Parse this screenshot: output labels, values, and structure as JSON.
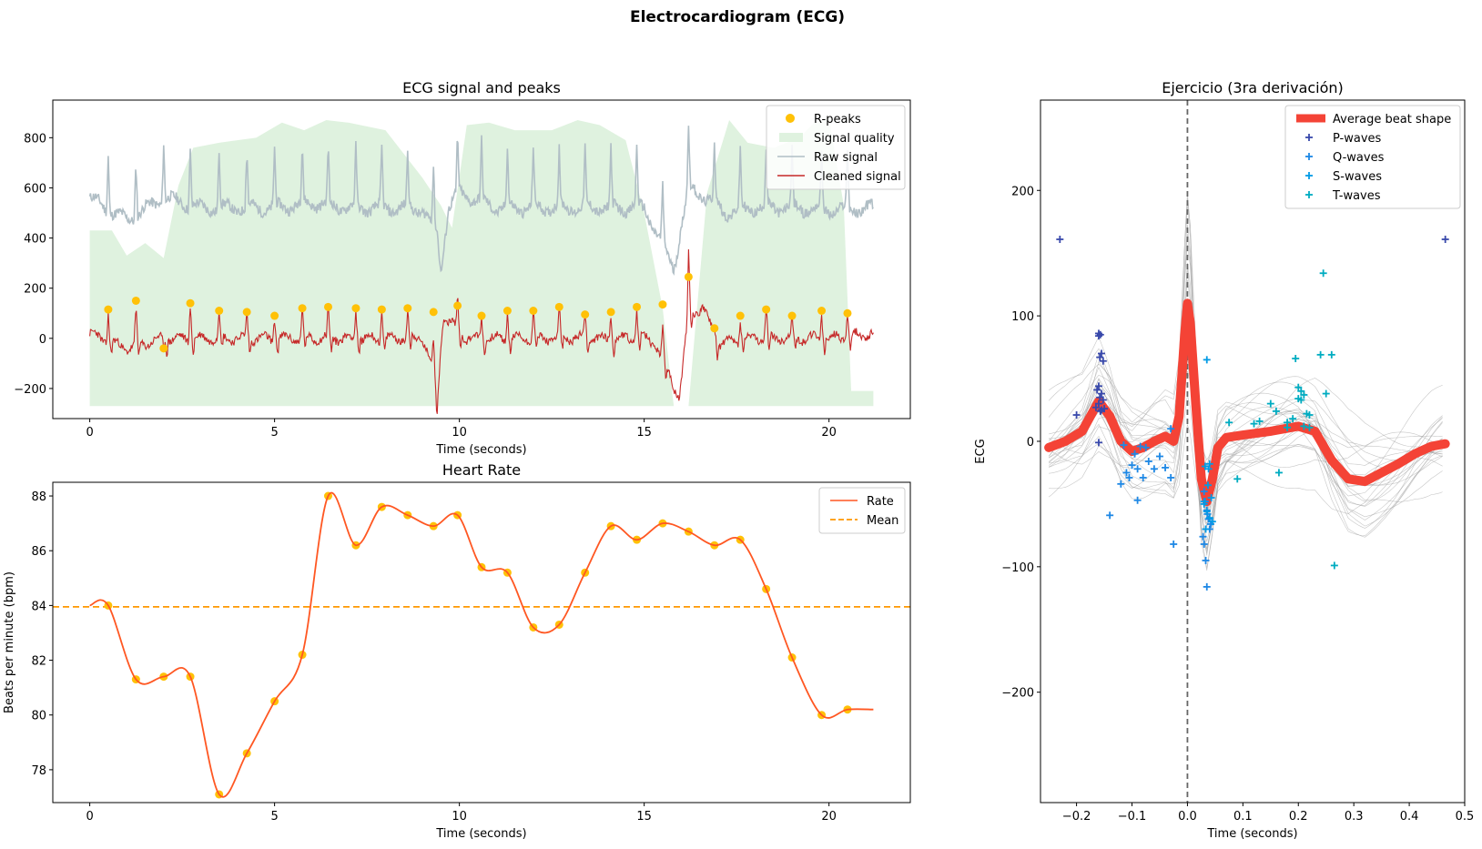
{
  "figure": {
    "suptitle": "Electrocardiogram (ECG)"
  },
  "colors": {
    "rpeak": "#FFC107",
    "quality": "#DFF2DF",
    "raw": "#B0BEC5",
    "cleaned": "#C62828",
    "rate": "#FF5722",
    "mean": "#FF9800",
    "avg": "#F44336",
    "pwave": "#3949AB",
    "qwave": "#1E88E5",
    "swave": "#039BE5",
    "twave": "#00ACC1"
  },
  "chart_data": [
    {
      "type": "line",
      "title": "ECG signal and peaks",
      "xlabel": "Time (seconds)",
      "ylabel": "",
      "xlim": [
        -1.0,
        22.2
      ],
      "ylim": [
        -320,
        950
      ],
      "xticks": [
        0,
        5,
        10,
        15,
        20
      ],
      "yticks": [
        -200,
        0,
        200,
        400,
        600,
        800
      ],
      "xtick_labels": [
        "0",
        "5",
        "10",
        "15",
        "20"
      ],
      "ytick_labels": [
        "−200",
        "0",
        "200",
        "400",
        "600",
        "800"
      ],
      "legend": [
        "R-peaks",
        "Signal quality",
        "Raw signal",
        "Cleaned signal"
      ],
      "legend_loc": "upper right",
      "r_peaks": {
        "x": [
          0.5,
          1.25,
          2.0,
          2.72,
          3.5,
          4.25,
          5.0,
          5.75,
          6.45,
          7.2,
          7.9,
          8.6,
          9.3,
          9.95,
          10.6,
          11.3,
          12.0,
          12.7,
          13.4,
          14.1,
          14.8,
          15.5,
          16.2,
          16.9,
          17.6,
          18.3,
          19.0,
          19.8,
          20.5
        ],
        "y": [
          115,
          150,
          -40,
          140,
          110,
          105,
          90,
          120,
          125,
          120,
          115,
          120,
          105,
          130,
          90,
          110,
          110,
          125,
          95,
          105,
          125,
          135,
          245,
          40,
          90,
          115,
          90,
          110,
          100
        ]
      },
      "signal_quality_x": [
        0,
        0.6,
        1.0,
        1.5,
        2.0,
        2.4,
        2.8,
        3.5,
        4.5,
        5.2,
        5.8,
        6.4,
        7.0,
        8.0,
        9.0,
        9.5,
        9.8,
        10.2,
        10.8,
        11.5,
        12.5,
        13.2,
        13.8,
        14.5,
        15.0,
        15.5,
        15.8,
        16.2,
        16.7,
        17.3,
        17.8,
        18.5,
        19.2,
        19.6,
        20.0,
        20.4,
        20.6,
        21.2
      ],
      "signal_quality_y": [
        430,
        430,
        330,
        380,
        320,
        610,
        760,
        780,
        800,
        860,
        830,
        870,
        860,
        830,
        640,
        530,
        440,
        850,
        860,
        830,
        830,
        870,
        850,
        790,
        500,
        120,
        -270,
        -270,
        580,
        870,
        780,
        760,
        800,
        860,
        880,
        530,
        -210,
        -210
      ],
      "raw_signal_baseline": [
        [
          0,
          560
        ],
        [
          1,
          470
        ],
        [
          2,
          560
        ],
        [
          3,
          520
        ],
        [
          4,
          520
        ],
        [
          5,
          520
        ],
        [
          6,
          540
        ],
        [
          7,
          520
        ],
        [
          8,
          520
        ],
        [
          9,
          515
        ],
        [
          9.4,
          420
        ],
        [
          9.5,
          270
        ],
        [
          9.7,
          520
        ],
        [
          10,
          580
        ],
        [
          11,
          520
        ],
        [
          12,
          520
        ],
        [
          13,
          520
        ],
        [
          14,
          520
        ],
        [
          15,
          520
        ],
        [
          15.4,
          400
        ],
        [
          15.8,
          280
        ],
        [
          16.2,
          600
        ],
        [
          16.8,
          550
        ],
        [
          17.2,
          500
        ],
        [
          18,
          520
        ],
        [
          19,
          520
        ],
        [
          20,
          510
        ],
        [
          21.2,
          520
        ]
      ],
      "cleaned_signal_baseline": [
        [
          0,
          20
        ],
        [
          1,
          -40
        ],
        [
          2,
          0
        ],
        [
          3,
          0
        ],
        [
          4,
          0
        ],
        [
          5,
          0
        ],
        [
          6,
          0
        ],
        [
          7,
          0
        ],
        [
          8,
          0
        ],
        [
          9,
          0
        ],
        [
          9.3,
          -120
        ],
        [
          9.4,
          -260
        ],
        [
          9.55,
          80
        ],
        [
          9.8,
          60
        ],
        [
          10.2,
          0
        ],
        [
          11,
          0
        ],
        [
          12,
          0
        ],
        [
          13,
          0
        ],
        [
          14,
          0
        ],
        [
          15,
          0
        ],
        [
          15.3,
          -20
        ],
        [
          15.6,
          -120
        ],
        [
          15.95,
          -240
        ],
        [
          16.2,
          100
        ],
        [
          16.6,
          120
        ],
        [
          17,
          -20
        ],
        [
          18,
          0
        ],
        [
          19,
          0
        ],
        [
          20,
          0
        ],
        [
          21.2,
          20
        ]
      ]
    },
    {
      "type": "line",
      "title": "Heart Rate",
      "xlabel": "Time (seconds)",
      "ylabel": "Beats per minute (bpm)",
      "xlim": [
        -1.0,
        22.2
      ],
      "ylim": [
        76.8,
        88.5
      ],
      "xticks": [
        0,
        5,
        10,
        15,
        20
      ],
      "yticks": [
        78,
        80,
        82,
        84,
        86,
        88
      ],
      "xtick_labels": [
        "0",
        "5",
        "10",
        "15",
        "20"
      ],
      "ytick_labels": [
        "78",
        "80",
        "82",
        "84",
        "86",
        "88"
      ],
      "legend": [
        "Rate",
        "Mean"
      ],
      "legend_loc": "upper right",
      "x": [
        0.5,
        1.25,
        2.0,
        2.72,
        3.5,
        4.25,
        5.0,
        5.75,
        6.45,
        7.2,
        7.9,
        8.6,
        9.3,
        9.95,
        10.6,
        11.3,
        12.0,
        12.7,
        13.4,
        14.1,
        14.8,
        15.5,
        16.2,
        16.9,
        17.6,
        18.3,
        19.0,
        19.8,
        20.5
      ],
      "y": [
        84.0,
        81.3,
        81.4,
        81.4,
        77.1,
        78.6,
        80.5,
        82.2,
        88.0,
        86.2,
        87.6,
        87.3,
        86.9,
        87.3,
        85.4,
        85.2,
        83.2,
        83.3,
        85.2,
        86.9,
        86.4,
        87.0,
        86.7,
        86.2,
        86.4,
        84.6,
        82.1,
        80.0,
        80.2
      ],
      "line_start": [
        0,
        84.0
      ],
      "line_end": [
        21.2,
        80.2
      ],
      "mean": 83.95
    },
    {
      "type": "line",
      "title": "Ejercicio (3ra derivación)",
      "xlabel": "Time (seconds)",
      "ylabel": "ECG",
      "xlim": [
        -0.265,
        0.5
      ],
      "ylim": [
        -288,
        272
      ],
      "xticks": [
        -0.2,
        -0.1,
        0.0,
        0.1,
        0.2,
        0.3,
        0.4,
        0.5
      ],
      "yticks": [
        -200,
        -100,
        0,
        100,
        200
      ],
      "xtick_labels": [
        "−0.2",
        "−0.1",
        "0.0",
        "0.1",
        "0.2",
        "0.3",
        "0.4",
        "0.5"
      ],
      "ytick_labels": [
        "−200",
        "−100",
        "0",
        "100",
        "200"
      ],
      "legend": [
        "Average beat shape",
        "P-waves",
        "Q-waves",
        "S-waves",
        "T-waves"
      ],
      "legend_loc": "upper right",
      "average_beat": {
        "x": [
          -0.25,
          -0.22,
          -0.19,
          -0.16,
          -0.14,
          -0.12,
          -0.1,
          -0.08,
          -0.06,
          -0.04,
          -0.025,
          -0.015,
          -0.005,
          0.0,
          0.005,
          0.015,
          0.025,
          0.035,
          0.045,
          0.055,
          0.07,
          0.1,
          0.15,
          0.2,
          0.23,
          0.26,
          0.29,
          0.32,
          0.35,
          0.38,
          0.41,
          0.44,
          0.465
        ],
        "y": [
          -5,
          0,
          8,
          32,
          20,
          0,
          -8,
          -5,
          0,
          4,
          0,
          20,
          85,
          110,
          95,
          30,
          -30,
          -48,
          -30,
          -5,
          3,
          5,
          8,
          12,
          8,
          -15,
          -30,
          -32,
          -25,
          -18,
          -10,
          -4,
          -2
        ]
      },
      "p_waves": {
        "x": [
          -0.23,
          -0.2,
          -0.16,
          -0.16,
          -0.157,
          -0.155,
          -0.152,
          -0.158,
          -0.16,
          -0.163,
          -0.155,
          -0.158,
          -0.152,
          -0.16,
          -0.165,
          -0.15,
          -0.155,
          -0.157,
          -0.16,
          0.465
        ],
        "y": [
          161,
          21,
          86,
          84,
          85,
          70,
          64,
          67,
          44,
          41,
          38,
          35,
          33,
          30,
          27,
          26,
          25,
          24,
          -1,
          161
        ]
      },
      "q_waves": {
        "x": [
          -0.14,
          -0.12,
          -0.11,
          -0.1,
          -0.09,
          -0.08,
          -0.07,
          -0.06,
          -0.05,
          -0.04,
          -0.03,
          -0.025,
          -0.095,
          -0.105,
          -0.085,
          -0.075,
          -0.115,
          -0.09,
          -0.03,
          0.03,
          0.032,
          0.035,
          0.038,
          0.04,
          0.03,
          0.033,
          0.036,
          0.028,
          0.042,
          0.035
        ],
        "y": [
          -59,
          -34,
          -25,
          -19,
          -22,
          -29,
          -16,
          -22,
          -12,
          -21,
          -29,
          -82,
          -10,
          -29,
          -4,
          -5,
          -3,
          -47,
          10,
          -40,
          -48,
          -55,
          -62,
          -70,
          -82,
          -95,
          -58,
          -76,
          -66,
          -116
        ]
      },
      "s_waves": {
        "x": [
          0.035,
          0.04,
          0.032,
          0.038,
          0.043,
          0.03,
          0.035,
          0.04,
          0.045,
          0.033,
          0.03,
          0.037
        ],
        "y": [
          65,
          -18,
          -20,
          -22,
          -45,
          -50,
          -56,
          -61,
          -64,
          -70,
          -48,
          -35
        ]
      },
      "t_waves": {
        "x": [
          0.075,
          0.12,
          0.13,
          0.15,
          0.16,
          0.18,
          0.195,
          0.2,
          0.205,
          0.21,
          0.215,
          0.22,
          0.2,
          0.19,
          0.21,
          0.22,
          0.25,
          0.26,
          0.265,
          0.245,
          0.205,
          0.165,
          0.18,
          0.24,
          0.09
        ],
        "y": [
          15,
          14,
          16,
          30,
          24,
          11,
          66,
          43,
          40,
          37,
          22,
          11,
          34,
          18,
          12,
          21,
          38,
          69,
          -99,
          134,
          33,
          -25,
          15,
          69,
          -30
        ]
      },
      "vline_x": 0.0
    }
  ]
}
